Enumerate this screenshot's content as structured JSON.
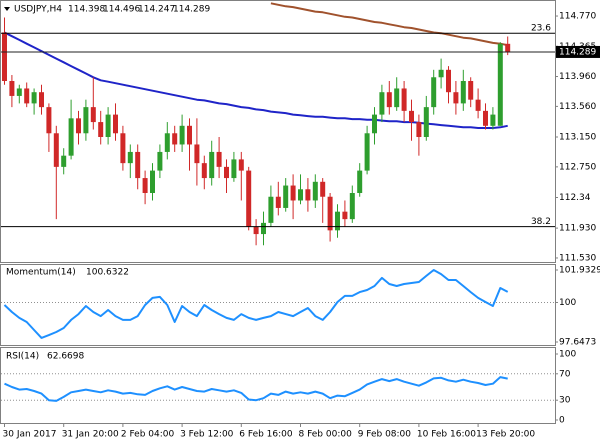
{
  "chart_data": [
    {
      "type": "candlestick",
      "title": "USDJPY,H4",
      "categories": [
        "30 Jan 2017",
        null,
        null,
        null,
        null,
        null,
        null,
        null,
        "31 Jan 20:00",
        null,
        null,
        null,
        null,
        null,
        null,
        null,
        "2 Feb 04:00",
        null,
        null,
        null,
        null,
        null,
        null,
        null,
        "3 Feb 12:00",
        null,
        null,
        null,
        null,
        null,
        null,
        null,
        "6 Feb 16:00",
        null,
        null,
        null,
        null,
        null,
        null,
        null,
        "8 Feb 00:00",
        null,
        null,
        null,
        null,
        null,
        null,
        null,
        "9 Feb 08:00",
        null,
        null,
        null,
        null,
        null,
        null,
        null,
        "10 Feb 16:00",
        null,
        null,
        null,
        null,
        null,
        null,
        null,
        "13 Feb 20:00",
        null,
        null,
        null,
        null
      ],
      "open": [
        114.55,
        113.9,
        113.7,
        113.8,
        113.6,
        113.75,
        113.55,
        113.2,
        112.75,
        112.9,
        113.4,
        113.2,
        113.55,
        113.35,
        113.15,
        113.45,
        113.2,
        112.8,
        112.95,
        112.6,
        112.4,
        112.7,
        112.95,
        113.2,
        113.05,
        113.3,
        113.05,
        112.8,
        112.6,
        112.95,
        112.75,
        112.6,
        112.85,
        112.7,
        111.95,
        111.85,
        112.0,
        112.35,
        112.2,
        112.5,
        112.3,
        112.45,
        112.3,
        112.55,
        112.35,
        111.9,
        112.15,
        112.05,
        112.4,
        112.7,
        113.2,
        113.45,
        113.75,
        113.55,
        113.8,
        113.5,
        113.35,
        113.15,
        113.55,
        113.95,
        114.05,
        113.75,
        113.6,
        113.9,
        113.65,
        113.5,
        113.3,
        113.3,
        114.398
      ],
      "high": [
        114.75,
        113.98,
        113.85,
        113.88,
        113.8,
        113.85,
        113.6,
        113.3,
        113.0,
        113.65,
        113.5,
        113.65,
        113.95,
        113.5,
        113.55,
        113.6,
        113.3,
        113.05,
        113.05,
        112.7,
        112.8,
        113.05,
        113.35,
        113.3,
        113.45,
        113.4,
        113.4,
        112.9,
        113.1,
        113.15,
        112.85,
        112.95,
        112.95,
        112.75,
        112.05,
        112.15,
        112.5,
        112.55,
        112.6,
        112.65,
        112.65,
        112.6,
        112.65,
        112.6,
        112.4,
        112.25,
        112.3,
        112.5,
        112.8,
        113.3,
        113.55,
        113.85,
        113.9,
        113.95,
        113.9,
        113.65,
        113.45,
        113.7,
        114.05,
        114.2,
        114.1,
        113.9,
        114.05,
        113.95,
        113.8,
        113.6,
        113.55,
        114.42,
        114.496
      ],
      "low": [
        113.85,
        113.55,
        113.6,
        113.55,
        113.45,
        113.45,
        112.95,
        112.05,
        112.65,
        112.85,
        113.05,
        113.1,
        113.25,
        113.05,
        113.05,
        113.1,
        112.7,
        112.6,
        112.45,
        112.25,
        112.3,
        112.6,
        112.85,
        112.95,
        112.95,
        112.7,
        112.5,
        112.45,
        112.5,
        112.6,
        112.4,
        112.55,
        112.3,
        111.9,
        111.7,
        111.7,
        111.95,
        112.1,
        112.15,
        112.05,
        112.25,
        112.15,
        112.2,
        112.0,
        111.75,
        111.8,
        111.95,
        112.0,
        112.35,
        112.65,
        113.05,
        113.35,
        113.45,
        113.5,
        113.35,
        113.1,
        112.9,
        113.1,
        113.45,
        113.8,
        113.6,
        113.45,
        113.5,
        113.55,
        113.4,
        113.25,
        113.25,
        113.3,
        114.247
      ],
      "close": [
        113.9,
        113.7,
        113.8,
        113.6,
        113.75,
        113.55,
        113.2,
        112.75,
        112.9,
        113.4,
        113.2,
        113.55,
        113.35,
        113.15,
        113.45,
        113.2,
        112.8,
        112.95,
        112.6,
        112.4,
        112.7,
        112.95,
        113.2,
        113.05,
        113.3,
        113.05,
        112.8,
        112.6,
        112.95,
        112.75,
        112.6,
        112.85,
        112.7,
        111.95,
        111.85,
        112.0,
        112.35,
        112.2,
        112.5,
        112.3,
        112.45,
        112.3,
        112.55,
        112.35,
        111.9,
        112.15,
        112.05,
        112.4,
        112.7,
        113.2,
        113.45,
        113.75,
        113.55,
        113.8,
        113.5,
        113.35,
        113.15,
        113.55,
        113.95,
        114.05,
        113.75,
        113.6,
        113.9,
        113.65,
        113.5,
        113.3,
        113.45,
        114.398,
        114.289
      ],
      "up_color": "#2e9e2e",
      "down_color": "#d02828",
      "series": [
        {
          "color": "#1f24c8",
          "values": [
            114.55,
            114.5,
            114.45,
            114.4,
            114.35,
            114.3,
            114.25,
            114.2,
            114.15,
            114.1,
            114.05,
            114.0,
            113.95,
            113.91,
            113.89,
            113.87,
            113.85,
            113.83,
            113.81,
            113.79,
            113.77,
            113.75,
            113.73,
            113.71,
            113.69,
            113.67,
            113.65,
            113.64,
            113.62,
            113.6,
            113.59,
            113.57,
            113.55,
            113.54,
            113.52,
            113.51,
            113.49,
            113.48,
            113.47,
            113.45,
            113.44,
            113.43,
            113.42,
            113.42,
            113.41,
            113.4,
            113.4,
            113.39,
            113.39,
            113.38,
            113.38,
            113.37,
            113.36,
            113.36,
            113.35,
            113.35,
            113.34,
            113.33,
            113.32,
            113.31,
            113.3,
            113.29,
            113.28,
            113.28,
            113.27,
            113.27,
            113.27,
            113.28,
            113.3
          ]
        },
        {
          "color": "#a0522d",
          "values": [
            null,
            null,
            null,
            null,
            null,
            null,
            null,
            null,
            null,
            null,
            null,
            null,
            null,
            null,
            null,
            null,
            null,
            null,
            null,
            null,
            null,
            null,
            null,
            null,
            null,
            null,
            null,
            null,
            null,
            null,
            null,
            null,
            null,
            null,
            null,
            null,
            114.94,
            114.92,
            114.9,
            114.89,
            114.87,
            114.85,
            114.83,
            114.82,
            114.8,
            114.78,
            114.76,
            114.75,
            114.73,
            114.71,
            114.69,
            114.68,
            114.66,
            114.64,
            114.62,
            114.61,
            114.59,
            114.57,
            114.55,
            114.54,
            114.52,
            114.5,
            114.48,
            114.47,
            114.45,
            114.43,
            114.41,
            114.4,
            114.38
          ]
        }
      ],
      "annotations": [
        {
          "label": "23.6",
          "value": 114.54
        },
        {
          "label": "38.2",
          "value": 111.95
        }
      ],
      "ylim": [
        111.476,
        114.958
      ],
      "yticks": [
        {
          "value": 114.77,
          "label": "114.770"
        },
        114.365,
        {
          "value": 113.96,
          "label": "113.960"
        },
        {
          "value": 113.56,
          "label": "113.560"
        },
        {
          "value": 113.15,
          "label": "113.150"
        },
        {
          "value": 112.75,
          "label": "112.750"
        },
        112.34,
        {
          "value": 111.93,
          "label": "111.930"
        },
        {
          "value": 111.53,
          "label": "111.530"
        }
      ]
    },
    {
      "type": "line",
      "title": "Momentum(14)",
      "color": "#1e90ff",
      "values": [
        99.85,
        99.43,
        99.08,
        98.84,
        98.36,
        97.89,
        98.06,
        98.24,
        98.48,
        98.96,
        99.31,
        99.79,
        99.43,
        99.19,
        99.55,
        99.19,
        98.96,
        98.96,
        99.19,
        99.85,
        100.27,
        100.33,
        99.85,
        98.84,
        99.79,
        99.43,
        99.19,
        99.85,
        99.55,
        99.31,
        99.08,
        98.96,
        99.31,
        99.08,
        98.96,
        99.08,
        99.19,
        99.43,
        99.31,
        99.19,
        99.43,
        99.67,
        99.19,
        98.96,
        99.43,
        100.03,
        100.39,
        100.39,
        100.62,
        100.74,
        100.98,
        101.46,
        101.1,
        100.98,
        101.1,
        101.16,
        101.22,
        101.58,
        101.93,
        101.69,
        101.34,
        101.34,
        100.98,
        100.62,
        100.27,
        100.03,
        99.79,
        100.86,
        100.6322
      ],
      "levels": [
        100
      ],
      "ylim": [
        97.6473,
        101.9329
      ],
      "yticks": [
        101.9329,
        100,
        97.6473
      ]
    },
    {
      "type": "line",
      "title": "RSI(14)",
      "color": "#1e90ff",
      "values": [
        55,
        50,
        46,
        47,
        44,
        40,
        30,
        29,
        35,
        42,
        44,
        46,
        44,
        42,
        45,
        43,
        40,
        41,
        39,
        38,
        44,
        48,
        51,
        46,
        50,
        47,
        44,
        43,
        47,
        45,
        43,
        45,
        41,
        31,
        30,
        33,
        40,
        38,
        43,
        40,
        42,
        40,
        43,
        40,
        33,
        37,
        36,
        41,
        46,
        54,
        58,
        62,
        59,
        62,
        58,
        55,
        52,
        57,
        63,
        64,
        60,
        58,
        61,
        58,
        56,
        53,
        55,
        65,
        62.6698
      ],
      "levels": [
        70,
        30
      ],
      "ylim": [
        0,
        100
      ],
      "yticks": [
        100,
        70,
        30,
        0
      ]
    }
  ]
}
